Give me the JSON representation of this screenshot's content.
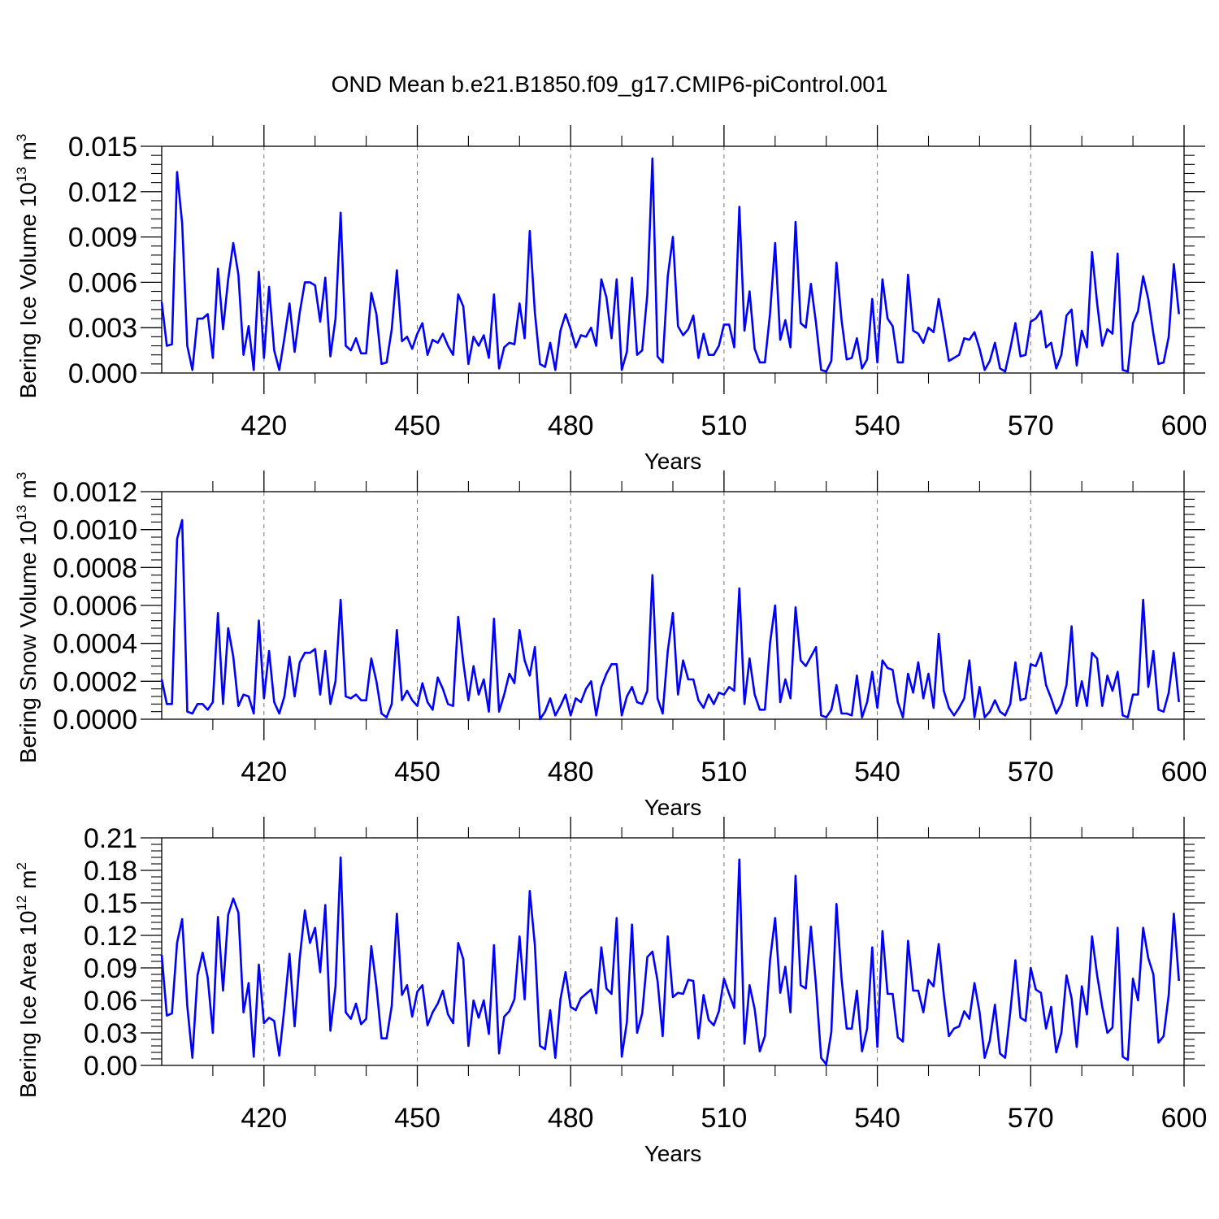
{
  "title": "OND Mean b.e21.B1850.f09_g17.CMIP6-piControl.001",
  "colors": {
    "line": "#0000ff",
    "axis": "#000000",
    "grid": "#777777"
  },
  "chart_data": [
    {
      "type": "line",
      "name": "ice-volume",
      "xlabel": "Years",
      "ylabel_main": "Bering Ice Volume 10",
      "ylabel_exp": "13",
      "ylabel_unit": " m",
      "ylabel_unit_exp": "3",
      "xlim": [
        400,
        600
      ],
      "ylim": [
        0.0,
        0.015
      ],
      "xticks": [
        420,
        450,
        480,
        510,
        540,
        570,
        600
      ],
      "yticks": [
        "0.000",
        "0.003",
        "0.006",
        "0.009",
        "0.012",
        "0.015"
      ],
      "x_start": 400,
      "x_step": 1,
      "values": [
        0.0047,
        0.0018,
        0.0019,
        0.0133,
        0.0099,
        0.0018,
        0.0002,
        0.0036,
        0.0036,
        0.0039,
        0.001,
        0.0069,
        0.0029,
        0.0062,
        0.0086,
        0.0065,
        0.0012,
        0.0031,
        0.0002,
        0.0067,
        0.001,
        0.0057,
        0.0015,
        0.0002,
        0.0023,
        0.0046,
        0.0014,
        0.004,
        0.006,
        0.006,
        0.0058,
        0.0034,
        0.0063,
        0.0011,
        0.0036,
        0.0106,
        0.0018,
        0.0015,
        0.0023,
        0.0013,
        0.0013,
        0.0053,
        0.0039,
        0.0006,
        0.0007,
        0.0029,
        0.0068,
        0.0021,
        0.0024,
        0.0016,
        0.0026,
        0.0033,
        0.0012,
        0.0022,
        0.002,
        0.0026,
        0.0018,
        0.0012,
        0.0052,
        0.0044,
        0.0006,
        0.0024,
        0.0018,
        0.0025,
        0.001,
        0.0052,
        0.0003,
        0.0017,
        0.002,
        0.0019,
        0.0046,
        0.0023,
        0.0094,
        0.004,
        0.0006,
        0.0004,
        0.002,
        0.0002,
        0.0028,
        0.0039,
        0.0029,
        0.0017,
        0.0025,
        0.0024,
        0.003,
        0.0018,
        0.0062,
        0.005,
        0.0023,
        0.0062,
        0.0002,
        0.0014,
        0.0063,
        0.0012,
        0.0015,
        0.0052,
        0.0142,
        0.0011,
        0.0007,
        0.0064,
        0.009,
        0.0031,
        0.0025,
        0.0029,
        0.0038,
        0.001,
        0.0026,
        0.0012,
        0.0012,
        0.0018,
        0.0032,
        0.0032,
        0.0017,
        0.011,
        0.0028,
        0.0054,
        0.0016,
        0.0007,
        0.0007,
        0.0039,
        0.0086,
        0.0022,
        0.0035,
        0.0017,
        0.01,
        0.0033,
        0.003,
        0.0059,
        0.0033,
        0.0002,
        0.0001,
        0.0008,
        0.0073,
        0.0035,
        0.0009,
        0.001,
        0.0023,
        0.0003,
        0.0009,
        0.0049,
        0.0007,
        0.0062,
        0.0036,
        0.0031,
        0.0007,
        0.0007,
        0.0065,
        0.0028,
        0.0026,
        0.002,
        0.003,
        0.0027,
        0.0049,
        0.0029,
        0.0008,
        0.001,
        0.0012,
        0.0023,
        0.0022,
        0.0027,
        0.0016,
        0.0002,
        0.0008,
        0.002,
        0.0003,
        0.0001,
        0.0016,
        0.0033,
        0.0011,
        0.0012,
        0.0034,
        0.0036,
        0.0041,
        0.0017,
        0.002,
        0.0003,
        0.0012,
        0.0038,
        0.0042,
        0.0005,
        0.0028,
        0.0017,
        0.008,
        0.0046,
        0.0018,
        0.0029,
        0.0026,
        0.0079,
        0.0002,
        0.0001,
        0.0033,
        0.0041,
        0.0064,
        0.0049,
        0.0026,
        0.0006,
        0.0007,
        0.0024,
        0.0072,
        0.0039
      ]
    },
    {
      "type": "line",
      "name": "snow-volume",
      "xlabel": "Years",
      "ylabel_main": "Bering Snow Volume 10",
      "ylabel_exp": "13",
      "ylabel_unit": " m",
      "ylabel_unit_exp": "3",
      "xlim": [
        400,
        600
      ],
      "ylim": [
        0.0,
        0.0012
      ],
      "xticks": [
        420,
        450,
        480,
        510,
        540,
        570,
        600
      ],
      "yticks": [
        "0.0000",
        "0.0002",
        "0.0004",
        "0.0006",
        "0.0008",
        "0.0010",
        "0.0012"
      ],
      "x_start": 400,
      "x_step": 1,
      "values": [
        0.00021,
        8e-05,
        8e-05,
        0.00095,
        0.00105,
        4e-05,
        3e-05,
        8e-05,
        8e-05,
        5e-05,
        9e-05,
        0.00056,
        8e-05,
        0.00048,
        0.00033,
        7e-05,
        0.00013,
        0.00012,
        3e-05,
        0.00052,
        0.00011,
        0.00036,
        9e-05,
        3e-05,
        0.00012,
        0.00033,
        0.00012,
        0.0003,
        0.00035,
        0.00035,
        0.00037,
        0.00013,
        0.00036,
        8e-05,
        0.0002,
        0.00063,
        0.00012,
        0.00011,
        0.00013,
        0.0001,
        0.0001,
        0.00032,
        0.0002,
        3e-05,
        1e-05,
        8e-05,
        0.00047,
        0.0001,
        0.00015,
        0.0001,
        7e-05,
        0.00019,
        9e-05,
        5e-05,
        0.00022,
        0.00016,
        8e-05,
        7e-05,
        0.00054,
        0.0003,
        0.0001,
        0.00028,
        0.00013,
        0.00021,
        4e-05,
        0.00053,
        4e-05,
        0.00013,
        0.00024,
        0.00019,
        0.00047,
        0.00031,
        0.00023,
        0.00038,
        0.0,
        4e-05,
        0.00011,
        2e-05,
        7e-05,
        0.00013,
        2e-05,
        0.00011,
        9e-05,
        0.00016,
        0.0002,
        2e-05,
        0.00017,
        0.00024,
        0.00029,
        0.00029,
        2e-05,
        0.00012,
        0.00017,
        9e-05,
        8e-05,
        0.00015,
        0.00076,
        0.00011,
        3e-05,
        0.00036,
        0.00056,
        0.00013,
        0.00031,
        0.00021,
        0.00021,
        0.0001,
        6e-05,
        0.00013,
        8e-05,
        0.00014,
        0.00013,
        0.00017,
        0.00015,
        0.00069,
        8e-05,
        0.00032,
        0.00013,
        5e-05,
        5e-05,
        0.0004,
        0.0006,
        9e-05,
        0.00021,
        0.00011,
        0.00059,
        0.00031,
        0.00028,
        0.00033,
        0.00038,
        2e-05,
        1e-05,
        5e-05,
        0.00018,
        3e-05,
        3e-05,
        2e-05,
        0.00023,
        1e-05,
        9e-05,
        0.00025,
        6e-05,
        0.00031,
        0.00027,
        0.00026,
        9e-05,
        1e-05,
        0.00024,
        0.00014,
        0.0003,
        0.00011,
        0.00024,
        6e-05,
        0.00045,
        0.00015,
        6e-05,
        2e-05,
        6e-05,
        0.00011,
        0.00031,
        1e-05,
        0.00017,
        1e-05,
        4e-05,
        0.0001,
        4e-05,
        2e-05,
        8e-05,
        0.0003,
        0.0001,
        0.00011,
        0.00029,
        0.00028,
        0.00035,
        0.00018,
        0.00011,
        3e-05,
        8e-05,
        0.00018,
        0.00049,
        7e-05,
        0.0002,
        7e-05,
        0.00035,
        0.00032,
        7e-05,
        0.00023,
        0.00015,
        0.00025,
        2e-05,
        1e-05,
        0.00013,
        0.00013,
        0.00063,
        0.00017,
        0.00036,
        5e-05,
        4e-05,
        0.00014,
        0.00035,
        9e-05
      ]
    },
    {
      "type": "line",
      "name": "ice-area",
      "xlabel": "Years",
      "ylabel_main": "Bering Ice Area 10",
      "ylabel_exp": "12",
      "ylabel_unit": " m",
      "ylabel_unit_exp": "2",
      "xlim": [
        400,
        600
      ],
      "ylim": [
        0.0,
        0.21
      ],
      "xticks": [
        420,
        450,
        480,
        510,
        540,
        570,
        600
      ],
      "yticks": [
        "0.00",
        "0.03",
        "0.06",
        "0.09",
        "0.12",
        "0.15",
        "0.18",
        "0.21"
      ],
      "x_start": 400,
      "x_step": 1,
      "values": [
        0.102,
        0.046,
        0.048,
        0.113,
        0.135,
        0.055,
        0.007,
        0.083,
        0.104,
        0.081,
        0.03,
        0.137,
        0.069,
        0.139,
        0.154,
        0.141,
        0.049,
        0.076,
        0.008,
        0.093,
        0.039,
        0.044,
        0.041,
        0.009,
        0.053,
        0.103,
        0.036,
        0.099,
        0.143,
        0.113,
        0.127,
        0.086,
        0.148,
        0.032,
        0.073,
        0.192,
        0.049,
        0.043,
        0.057,
        0.038,
        0.043,
        0.11,
        0.073,
        0.025,
        0.025,
        0.055,
        0.14,
        0.065,
        0.074,
        0.045,
        0.068,
        0.074,
        0.037,
        0.049,
        0.057,
        0.069,
        0.047,
        0.039,
        0.113,
        0.098,
        0.018,
        0.06,
        0.044,
        0.06,
        0.029,
        0.111,
        0.011,
        0.045,
        0.05,
        0.061,
        0.119,
        0.061,
        0.161,
        0.111,
        0.018,
        0.015,
        0.051,
        0.007,
        0.061,
        0.086,
        0.054,
        0.051,
        0.062,
        0.066,
        0.07,
        0.048,
        0.109,
        0.071,
        0.066,
        0.136,
        0.008,
        0.04,
        0.13,
        0.03,
        0.048,
        0.1,
        0.105,
        0.078,
        0.027,
        0.119,
        0.063,
        0.067,
        0.066,
        0.079,
        0.078,
        0.025,
        0.065,
        0.042,
        0.037,
        0.05,
        0.08,
        0.066,
        0.053,
        0.19,
        0.02,
        0.074,
        0.052,
        0.013,
        0.027,
        0.097,
        0.136,
        0.067,
        0.091,
        0.049,
        0.175,
        0.074,
        0.071,
        0.128,
        0.074,
        0.007,
        0.001,
        0.031,
        0.149,
        0.08,
        0.034,
        0.034,
        0.069,
        0.013,
        0.034,
        0.109,
        0.017,
        0.124,
        0.066,
        0.066,
        0.026,
        0.022,
        0.115,
        0.069,
        0.069,
        0.049,
        0.079,
        0.073,
        0.112,
        0.065,
        0.027,
        0.034,
        0.036,
        0.05,
        0.043,
        0.076,
        0.049,
        0.007,
        0.023,
        0.056,
        0.011,
        0.007,
        0.049,
        0.097,
        0.044,
        0.041,
        0.09,
        0.07,
        0.067,
        0.034,
        0.054,
        0.012,
        0.03,
        0.083,
        0.062,
        0.017,
        0.073,
        0.047,
        0.119,
        0.083,
        0.054,
        0.03,
        0.035,
        0.127,
        0.008,
        0.005,
        0.08,
        0.06,
        0.127,
        0.099,
        0.084,
        0.021,
        0.027,
        0.065,
        0.14,
        0.078
      ]
    }
  ]
}
